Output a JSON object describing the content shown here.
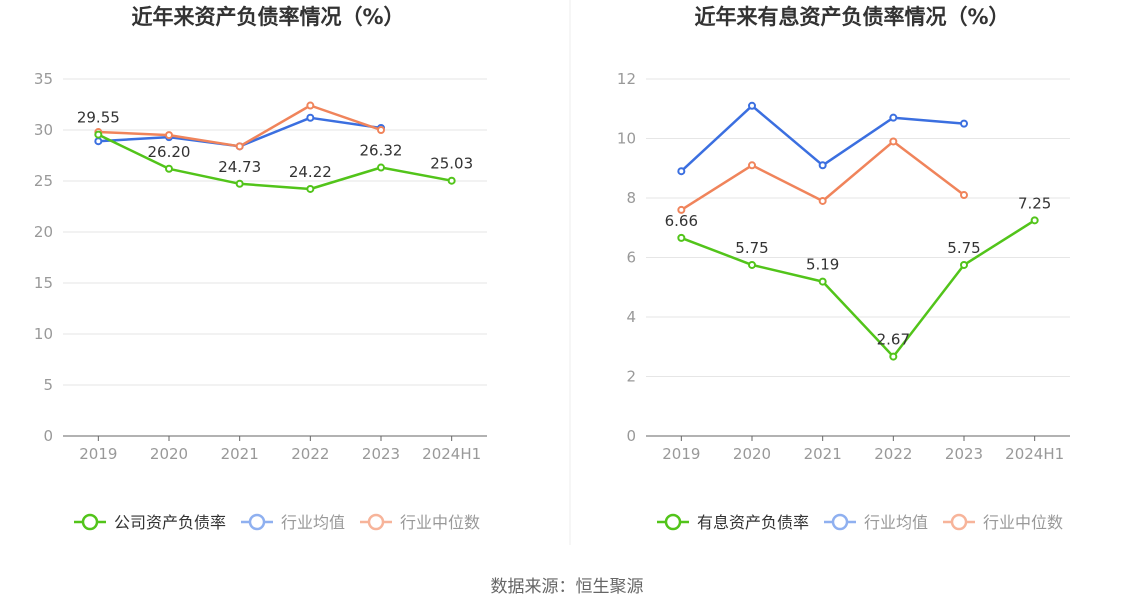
{
  "footer": {
    "source": "数据来源：恒生聚源"
  },
  "chart_data": [
    {
      "type": "line",
      "title": "近年来资产负债率情况（%）",
      "categories": [
        "2019",
        "2020",
        "2021",
        "2022",
        "2023",
        "2024H1"
      ],
      "ylim": [
        0,
        35
      ],
      "yticks": [
        0,
        5,
        10,
        15,
        20,
        25,
        30,
        35
      ],
      "grid": true,
      "legend_position": "bottom",
      "series": [
        {
          "name": "公司资产负债率",
          "color": "#52c41a",
          "values": [
            29.55,
            26.2,
            24.73,
            24.22,
            26.32,
            25.03
          ],
          "labels": [
            "29.55",
            "26.20",
            "24.73",
            "24.22",
            "26.32",
            "25.03"
          ]
        },
        {
          "name": "行业均值",
          "color": "#3b6fe0",
          "values": [
            28.9,
            29.3,
            28.4,
            31.2,
            30.2,
            null
          ]
        },
        {
          "name": "行业中位数",
          "color": "#f0845b",
          "values": [
            29.8,
            29.5,
            28.4,
            32.4,
            30.0,
            null
          ]
        }
      ]
    },
    {
      "type": "line",
      "title": "近年来有息资产负债率情况（%）",
      "categories": [
        "2019",
        "2020",
        "2021",
        "2022",
        "2023",
        "2024H1"
      ],
      "ylim": [
        0,
        12
      ],
      "yticks": [
        0,
        2,
        4,
        6,
        8,
        10,
        12
      ],
      "grid": true,
      "legend_position": "bottom",
      "series": [
        {
          "name": "有息资产负债率",
          "color": "#52c41a",
          "values": [
            6.66,
            5.75,
            5.19,
            2.67,
            5.75,
            7.25
          ],
          "labels": [
            "6.66",
            "5.75",
            "5.19",
            "2.67",
            "5.75",
            "7.25"
          ]
        },
        {
          "name": "行业均值",
          "color": "#3b6fe0",
          "values": [
            8.9,
            11.1,
            9.1,
            10.7,
            10.5,
            null
          ]
        },
        {
          "name": "行业中位数",
          "color": "#f0845b",
          "values": [
            7.6,
            9.1,
            7.9,
            9.9,
            8.1,
            null
          ]
        }
      ]
    }
  ]
}
